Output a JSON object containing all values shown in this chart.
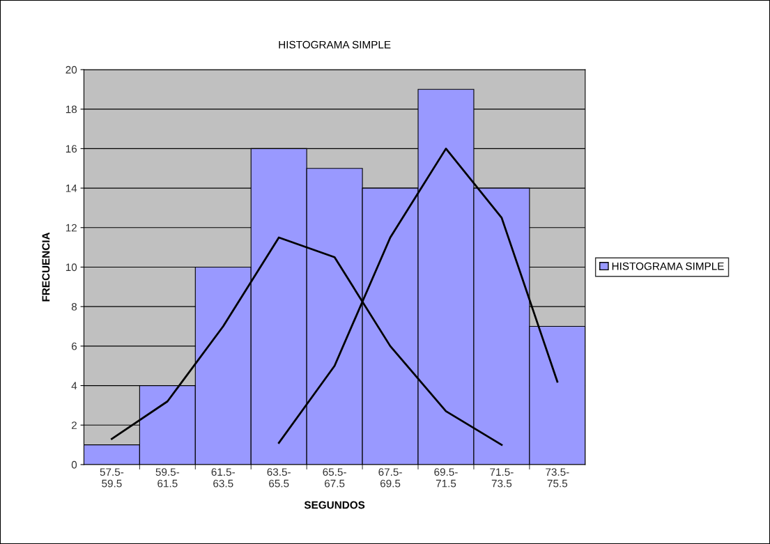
{
  "chart_data": {
    "type": "bar",
    "title": "HISTOGRAMA SIMPLE",
    "xlabel": "SEGUNDOS",
    "ylabel": "FRECUENCIA",
    "categories": [
      "57.5-\n59.5",
      "59.5-\n61.5",
      "61.5-\n63.5",
      "63.5-\n65.5",
      "65.5-\n67.5",
      "67.5-\n69.5",
      "69.5-\n71.5",
      "71.5-\n73.5",
      "73.5-\n75.5"
    ],
    "series": [
      {
        "name": "HISTOGRAMA SIMPLE",
        "color": "#9999ff",
        "values": [
          1,
          4,
          10,
          16,
          15,
          14,
          19,
          14,
          7
        ]
      },
      {
        "type": "line",
        "color": "#000000",
        "values": [
          1.3,
          3.2,
          7,
          11.5,
          10.5,
          6,
          2.7,
          1.0,
          null
        ]
      },
      {
        "type": "line",
        "color": "#000000",
        "values": [
          null,
          null,
          null,
          1.1,
          5,
          11.5,
          16,
          12.5,
          4.2
        ]
      }
    ],
    "ylim": [
      0,
      20
    ],
    "yticks": [
      0,
      2,
      4,
      6,
      8,
      10,
      12,
      14,
      16,
      18,
      20
    ],
    "grid": "y",
    "legend": "right"
  }
}
